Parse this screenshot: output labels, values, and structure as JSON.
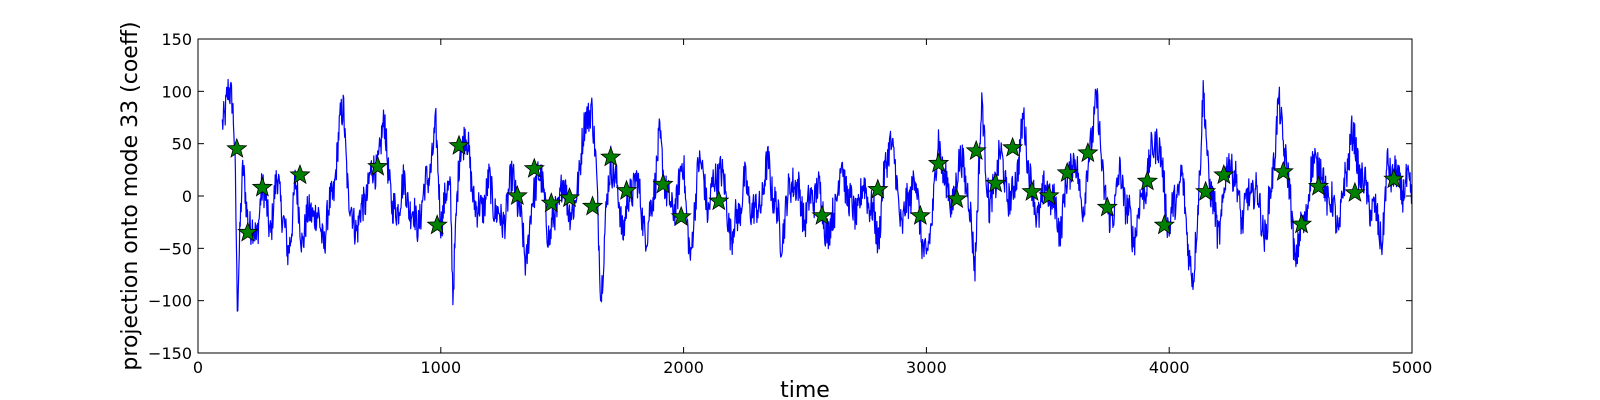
{
  "chart_data": {
    "type": "line",
    "title": "",
    "xlabel": "time",
    "ylabel": "projection onto mode 33 (coeff)",
    "xlim": [
      0,
      5000
    ],
    "ylim": [
      -150,
      150
    ],
    "xticks": [
      "0",
      "1000",
      "2000",
      "3000",
      "4000",
      "5000"
    ],
    "yticks": [
      "150",
      "100",
      "50",
      "0",
      "−50",
      "−100",
      "−150"
    ],
    "grid": false,
    "colors": {
      "line": "#0000ff",
      "marker_fill": "#008000",
      "marker_edge": "#000000"
    },
    "series": [
      {
        "type": "line",
        "x_start": 100,
        "x_end": 5000,
        "keypoints": [
          [
            100,
            60
          ],
          [
            110,
            75
          ],
          [
            118,
            100
          ],
          [
            125,
            110
          ],
          [
            132,
            98
          ],
          [
            140,
            85
          ],
          [
            148,
            60
          ],
          [
            153,
            25
          ],
          [
            158,
            -40
          ],
          [
            162,
            -105
          ],
          [
            168,
            -60
          ],
          [
            175,
            -20
          ],
          [
            185,
            20
          ],
          [
            200,
            -10
          ],
          [
            220,
            -30
          ],
          [
            240,
            -45
          ],
          [
            260,
            10
          ],
          [
            300,
            -30
          ],
          [
            330,
            20
          ],
          [
            370,
            -60
          ],
          [
            400,
            10
          ],
          [
            430,
            -40
          ],
          [
            470,
            -10
          ],
          [
            520,
            -40
          ],
          [
            560,
            10
          ],
          [
            590,
            75
          ],
          [
            600,
            90
          ],
          [
            620,
            -10
          ],
          [
            660,
            -30
          ],
          [
            700,
            10
          ],
          [
            750,
            40
          ],
          [
            770,
            72
          ],
          [
            800,
            -20
          ],
          [
            850,
            10
          ],
          [
            900,
            -30
          ],
          [
            950,
            20
          ],
          [
            980,
            60
          ],
          [
            1000,
            -20
          ],
          [
            1040,
            10
          ],
          [
            1050,
            -90
          ],
          [
            1080,
            50
          ],
          [
            1100,
            60
          ],
          [
            1150,
            -20
          ],
          [
            1200,
            10
          ],
          [
            1250,
            -30
          ],
          [
            1300,
            20
          ],
          [
            1350,
            -60
          ],
          [
            1400,
            30
          ],
          [
            1450,
            -40
          ],
          [
            1500,
            10
          ],
          [
            1550,
            -20
          ],
          [
            1580,
            50
          ],
          [
            1610,
            80
          ],
          [
            1620,
            95
          ],
          [
            1640,
            20
          ],
          [
            1660,
            -90
          ],
          [
            1700,
            40
          ],
          [
            1750,
            -30
          ],
          [
            1800,
            20
          ],
          [
            1850,
            -40
          ],
          [
            1900,
            50
          ],
          [
            1950,
            -20
          ],
          [
            2000,
            30
          ],
          [
            2030,
            -70
          ],
          [
            2060,
            40
          ],
          [
            2100,
            -10
          ],
          [
            2150,
            30
          ],
          [
            2200,
            -40
          ],
          [
            2250,
            10
          ],
          [
            2300,
            -20
          ],
          [
            2350,
            30
          ],
          [
            2400,
            -40
          ],
          [
            2450,
            20
          ],
          [
            2500,
            -20
          ],
          [
            2550,
            10
          ],
          [
            2600,
            -40
          ],
          [
            2650,
            30
          ],
          [
            2700,
            -20
          ],
          [
            2750,
            10
          ],
          [
            2800,
            -40
          ],
          [
            2850,
            60
          ],
          [
            2900,
            -30
          ],
          [
            2950,
            20
          ],
          [
            3000,
            -70
          ],
          [
            3050,
            50
          ],
          [
            3100,
            -10
          ],
          [
            3150,
            40
          ],
          [
            3200,
            -60
          ],
          [
            3230,
            90
          ],
          [
            3260,
            -20
          ],
          [
            3300,
            40
          ],
          [
            3350,
            -10
          ],
          [
            3400,
            70
          ],
          [
            3450,
            -20
          ],
          [
            3500,
            10
          ],
          [
            3550,
            -30
          ],
          [
            3600,
            40
          ],
          [
            3650,
            -10
          ],
          [
            3680,
            60
          ],
          [
            3700,
            90
          ],
          [
            3750,
            -30
          ],
          [
            3800,
            20
          ],
          [
            3850,
            -40
          ],
          [
            3900,
            10
          ],
          [
            3950,
            60
          ],
          [
            4000,
            -30
          ],
          [
            4050,
            20
          ],
          [
            4100,
            -90
          ],
          [
            4140,
            95
          ],
          [
            4160,
            30
          ],
          [
            4200,
            -40
          ],
          [
            4250,
            40
          ],
          [
            4300,
            -20
          ],
          [
            4350,
            10
          ],
          [
            4400,
            -40
          ],
          [
            4450,
            85
          ],
          [
            4480,
            40
          ],
          [
            4520,
            -60
          ],
          [
            4560,
            -20
          ],
          [
            4600,
            40
          ],
          [
            4640,
            10
          ],
          [
            4700,
            -30
          ],
          [
            4750,
            60
          ],
          [
            4800,
            10
          ],
          [
            4850,
            -20
          ],
          [
            4880,
            -40
          ],
          [
            4900,
            30
          ],
          [
            4950,
            10
          ],
          [
            5000,
            5
          ]
        ]
      },
      {
        "type": "scatter",
        "marker": "star",
        "points": [
          [
            160,
            45
          ],
          [
            205,
            -35
          ],
          [
            265,
            8
          ],
          [
            420,
            20
          ],
          [
            740,
            28
          ],
          [
            985,
            -28
          ],
          [
            1075,
            48
          ],
          [
            1315,
            0
          ],
          [
            1385,
            26
          ],
          [
            1455,
            -7
          ],
          [
            1530,
            -2
          ],
          [
            1625,
            -10
          ],
          [
            1700,
            37
          ],
          [
            1765,
            5
          ],
          [
            1915,
            11
          ],
          [
            1990,
            -20
          ],
          [
            2145,
            -5
          ],
          [
            2570,
            -19
          ],
          [
            2800,
            6
          ],
          [
            2975,
            -19
          ],
          [
            3050,
            31
          ],
          [
            3125,
            -3
          ],
          [
            3205,
            43
          ],
          [
            3285,
            12
          ],
          [
            3355,
            46
          ],
          [
            3435,
            4
          ],
          [
            3505,
            0
          ],
          [
            3580,
            22
          ],
          [
            3665,
            41
          ],
          [
            3745,
            -11
          ],
          [
            3910,
            14
          ],
          [
            3980,
            -28
          ],
          [
            4150,
            4
          ],
          [
            4225,
            20
          ],
          [
            4470,
            23
          ],
          [
            4545,
            -27
          ],
          [
            4615,
            9
          ],
          [
            4765,
            3
          ],
          [
            4925,
            16
          ]
        ]
      }
    ]
  }
}
